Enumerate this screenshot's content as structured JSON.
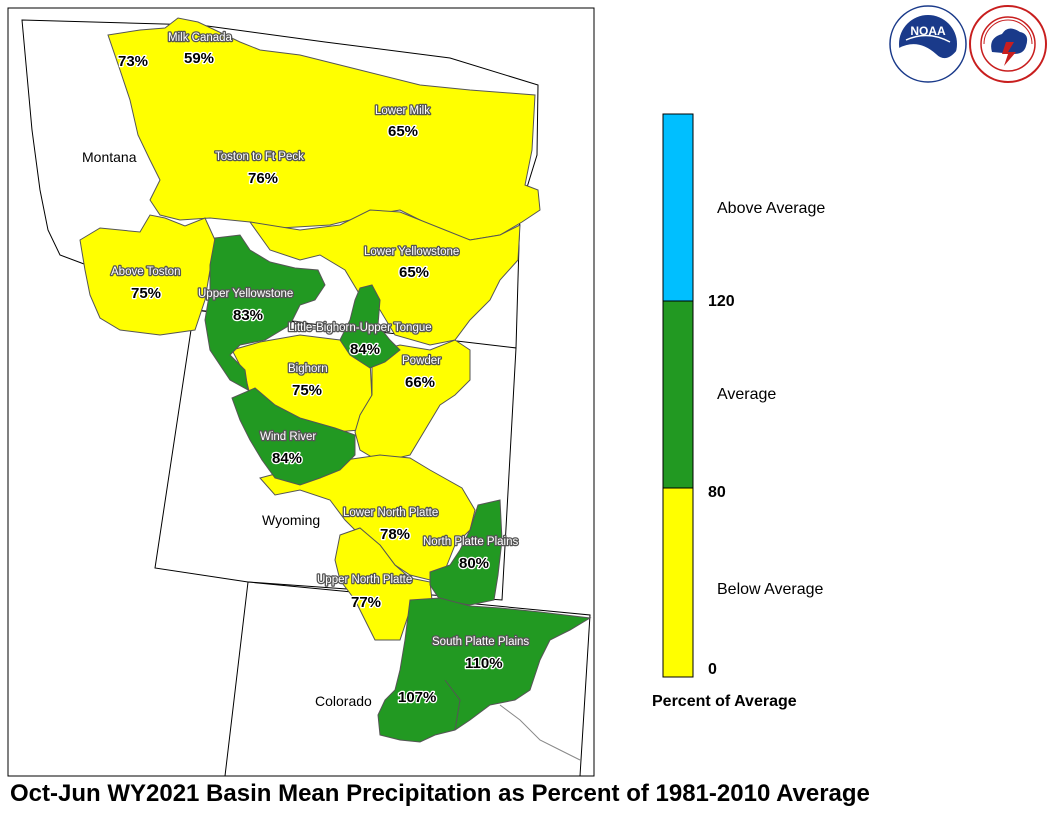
{
  "title": "Oct-Jun WY2021 Basin Mean Precipitation as Percent of 1981-2010 Average",
  "states": [
    "Montana",
    "Wyoming",
    "Colorado"
  ],
  "colors": {
    "below": "#ffff00",
    "average": "#229922",
    "above": "#00bfff",
    "outline": "#555555",
    "state_border": "#000000"
  },
  "basins": [
    {
      "name": "Milk Canada",
      "pct": "59%",
      "category": "below"
    },
    {
      "name": "",
      "pct": "73%",
      "category": "below"
    },
    {
      "name": "Lower Milk",
      "pct": "65%",
      "category": "below"
    },
    {
      "name": "Toston to Ft Peck",
      "pct": "76%",
      "category": "below"
    },
    {
      "name": "Above Toston",
      "pct": "75%",
      "category": "below"
    },
    {
      "name": "Lower Yellowstone",
      "pct": "65%",
      "category": "below"
    },
    {
      "name": "Upper Yellowstone",
      "pct": "83%",
      "category": "average"
    },
    {
      "name": "Little-Bighorn-Upper Tongue",
      "pct": "84%",
      "category": "average"
    },
    {
      "name": "Bighorn",
      "pct": "75%",
      "category": "below"
    },
    {
      "name": "Powder",
      "pct": "66%",
      "category": "below"
    },
    {
      "name": "Wind River",
      "pct": "84%",
      "category": "average"
    },
    {
      "name": "Lower North Platte",
      "pct": "78%",
      "category": "below"
    },
    {
      "name": "North Platte Plains",
      "pct": "80%",
      "category": "average"
    },
    {
      "name": "Upper North Platte",
      "pct": "77%",
      "category": "below"
    },
    {
      "name": "South Platte Plains",
      "pct": "110%",
      "category": "average"
    },
    {
      "name": "",
      "pct": "107%",
      "category": "average"
    }
  ],
  "legend": {
    "title": "Percent of Average",
    "categories": [
      {
        "label": "Above Average",
        "color": "#00bfff"
      },
      {
        "label": "Average",
        "color": "#229922"
      },
      {
        "label": "Below Average",
        "color": "#ffff00"
      }
    ],
    "ticks": [
      "120",
      "80",
      "0"
    ]
  },
  "logos": {
    "noaa": "NOAA",
    "noaa_ring": "NATIONAL OCEANIC AND ATMOSPHERIC ADMINISTRATION · U.S. DEPARTMENT OF COMMERCE",
    "nws_ring": "NATIONAL WEATHER SERVICE"
  }
}
